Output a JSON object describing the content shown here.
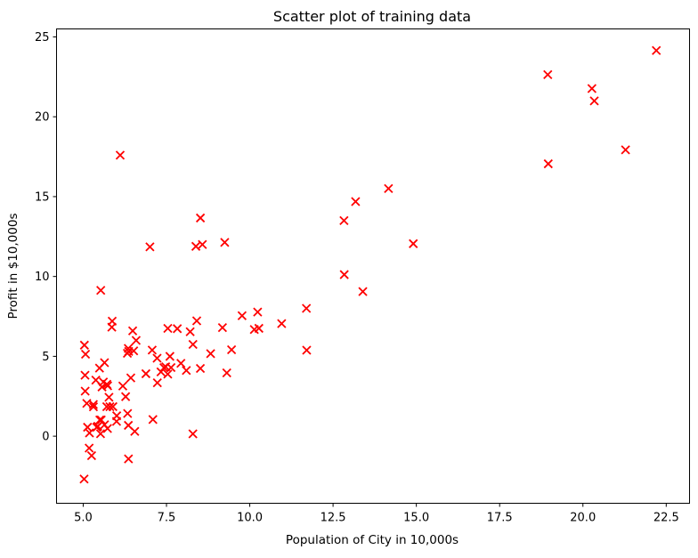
{
  "chart_data": {
    "type": "scatter",
    "title": "Scatter plot of training data",
    "xlabel": "Population of City in 10,000s",
    "ylabel": "Profit in $10,000s",
    "xlim": [
      4.2,
      23.2
    ],
    "ylim": [
      -4.2,
      25.5
    ],
    "xticks": [
      5.0,
      7.5,
      10.0,
      12.5,
      15.0,
      17.5,
      20.0,
      22.5
    ],
    "xtick_labels": [
      "5.0",
      "7.5",
      "10.0",
      "12.5",
      "15.0",
      "17.5",
      "20.0",
      "22.5"
    ],
    "yticks": [
      0,
      5,
      10,
      15,
      20,
      25
    ],
    "ytick_labels": [
      "0",
      "5",
      "10",
      "15",
      "20",
      "25"
    ],
    "grid": false,
    "marker": "x",
    "color": "#ff0000",
    "x": [
      6.1101,
      5.5277,
      8.5186,
      7.0032,
      5.8598,
      8.3829,
      7.4764,
      8.5781,
      6.4862,
      5.0546,
      5.7107,
      14.164,
      5.734,
      8.4084,
      5.6407,
      5.3794,
      6.3654,
      5.1301,
      6.4296,
      7.0708,
      6.1891,
      20.27,
      5.4901,
      6.3261,
      5.5649,
      18.945,
      12.828,
      10.957,
      13.176,
      22.203,
      5.2524,
      6.5894,
      9.2482,
      5.8918,
      8.2111,
      7.9334,
      8.0959,
      5.6063,
      12.836,
      6.3534,
      5.4069,
      6.8825,
      11.708,
      5.7737,
      7.8247,
      7.0931,
      5.0702,
      5.8014,
      11.7,
      5.5416,
      7.5402,
      5.3077,
      7.4239,
      7.6031,
      6.3328,
      6.3589,
      6.2742,
      5.6397,
      9.3102,
      9.4536,
      8.8254,
      5.1793,
      21.279,
      14.908,
      18.959,
      7.2182,
      8.2951,
      10.236,
      5.4994,
      20.341,
      10.136,
      7.3345,
      6.0062,
      7.2259,
      5.0269,
      6.5479,
      7.5386,
      5.0365,
      10.274,
      5.1077,
      5.7292,
      5.1884,
      6.3557,
      9.7687,
      6.5159,
      8.5172,
      9.1802,
      6.002,
      5.5204,
      5.0594,
      5.7077,
      7.6366,
      5.8707,
      5.3054,
      8.2934,
      13.394,
      5.4369
    ],
    "y": [
      17.592,
      9.1302,
      13.662,
      11.854,
      6.8233,
      11.886,
      4.3483,
      12.0,
      6.5987,
      3.8166,
      3.2522,
      15.505,
      3.1551,
      7.2258,
      0.71618,
      3.5129,
      5.3048,
      0.56077,
      3.6518,
      5.3893,
      3.1386,
      21.767,
      4.263,
      5.1875,
      3.0825,
      22.638,
      13.501,
      7.0467,
      14.692,
      24.147,
      -1.22,
      5.9966,
      12.134,
      1.8495,
      6.5426,
      4.5623,
      4.1164,
      3.3928,
      10.117,
      5.4974,
      0.55657,
      3.9115,
      5.3854,
      2.4406,
      6.7318,
      1.0463,
      5.1337,
      1.844,
      8.0043,
      1.0179,
      6.7504,
      1.8396,
      4.2885,
      4.9981,
      1.4233,
      -1.4211,
      2.4756,
      4.6042,
      3.9624,
      5.4141,
      5.1694,
      -0.74279,
      17.929,
      12.054,
      17.054,
      4.8852,
      5.7442,
      7.7754,
      1.0173,
      20.992,
      6.6799,
      4.0259,
      1.2784,
      3.3411,
      -2.6807,
      0.29678,
      3.8845,
      5.7014,
      6.7526,
      2.0576,
      0.47953,
      0.20421,
      0.67861,
      7.5435,
      5.3436,
      4.2415,
      6.7981,
      0.92695,
      0.152,
      2.8214,
      1.8451,
      4.2959,
      7.2029,
      1.9869,
      0.14454,
      9.0551,
      0.61705
    ]
  }
}
